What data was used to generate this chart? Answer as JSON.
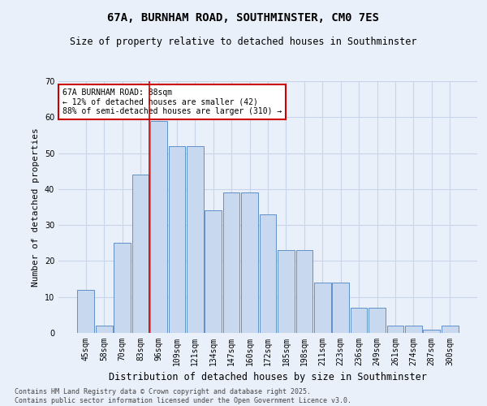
{
  "title": "67A, BURNHAM ROAD, SOUTHMINSTER, CM0 7ES",
  "subtitle": "Size of property relative to detached houses in Southminster",
  "xlabel": "Distribution of detached houses by size in Southminster",
  "ylabel": "Number of detached properties",
  "categories": [
    "45sqm",
    "58sqm",
    "70sqm",
    "83sqm",
    "96sqm",
    "109sqm",
    "121sqm",
    "134sqm",
    "147sqm",
    "160sqm",
    "172sqm",
    "185sqm",
    "198sqm",
    "211sqm",
    "223sqm",
    "236sqm",
    "249sqm",
    "261sqm",
    "274sqm",
    "287sqm",
    "300sqm"
  ],
  "values": [
    12,
    2,
    25,
    44,
    59,
    52,
    52,
    34,
    39,
    39,
    33,
    23,
    23,
    14,
    14,
    7,
    7,
    2,
    2,
    1,
    2
  ],
  "bar_color": "#c8d8ef",
  "bar_edge_color": "#6090c8",
  "grid_color": "#c8d4e8",
  "bg_color": "#eaf0fa",
  "vline_color": "#cc0000",
  "vline_pos": 3.5,
  "annotation_text": "67A BURNHAM ROAD: 88sqm\n← 12% of detached houses are smaller (42)\n88% of semi-detached houses are larger (310) →",
  "annotation_box_color": "#ffffff",
  "annotation_box_edge": "#cc0000",
  "footer": "Contains HM Land Registry data © Crown copyright and database right 2025.\nContains public sector information licensed under the Open Government Licence v3.0.",
  "ylim": [
    0,
    70
  ],
  "yticks": [
    0,
    10,
    20,
    30,
    40,
    50,
    60,
    70
  ],
  "title_fontsize": 10,
  "subtitle_fontsize": 8.5,
  "tick_fontsize": 7,
  "ylabel_fontsize": 8,
  "xlabel_fontsize": 8.5,
  "annot_fontsize": 7,
  "footer_fontsize": 6
}
